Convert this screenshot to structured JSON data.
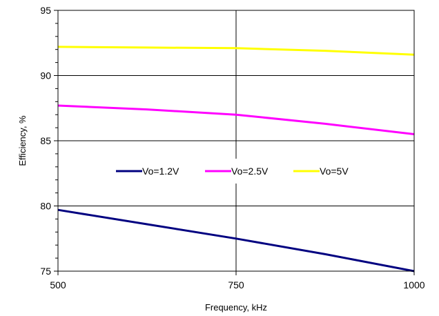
{
  "chart_data": {
    "type": "line",
    "title": "",
    "xlabel": "Frequency, kHz",
    "ylabel": "Efficiency, %",
    "xlim": [
      500,
      1000
    ],
    "ylim": [
      75,
      95
    ],
    "xticks": [
      500,
      750,
      1000
    ],
    "yticks": [
      75,
      80,
      85,
      90,
      95
    ],
    "xtick_labels": [
      "500",
      "750",
      "1000"
    ],
    "ytick_labels": [
      "75",
      "80",
      "85",
      "90",
      "95"
    ],
    "grid": true,
    "legend_position": "center",
    "series": [
      {
        "name": "Vo=1.2V",
        "color": "#000080",
        "x": [
          500,
          625,
          750,
          875,
          1000
        ],
        "y": [
          79.7,
          78.6,
          77.5,
          76.3,
          75.0
        ]
      },
      {
        "name": "Vo=2.5V",
        "color": "#FF00FF",
        "x": [
          500,
          625,
          750,
          875,
          1000
        ],
        "y": [
          87.7,
          87.4,
          87.0,
          86.3,
          85.5
        ]
      },
      {
        "name": "Vo=5V",
        "color": "#FFFF00",
        "x": [
          500,
          625,
          750,
          875,
          1000
        ],
        "y": [
          92.2,
          92.15,
          92.1,
          91.9,
          91.6
        ]
      }
    ]
  }
}
